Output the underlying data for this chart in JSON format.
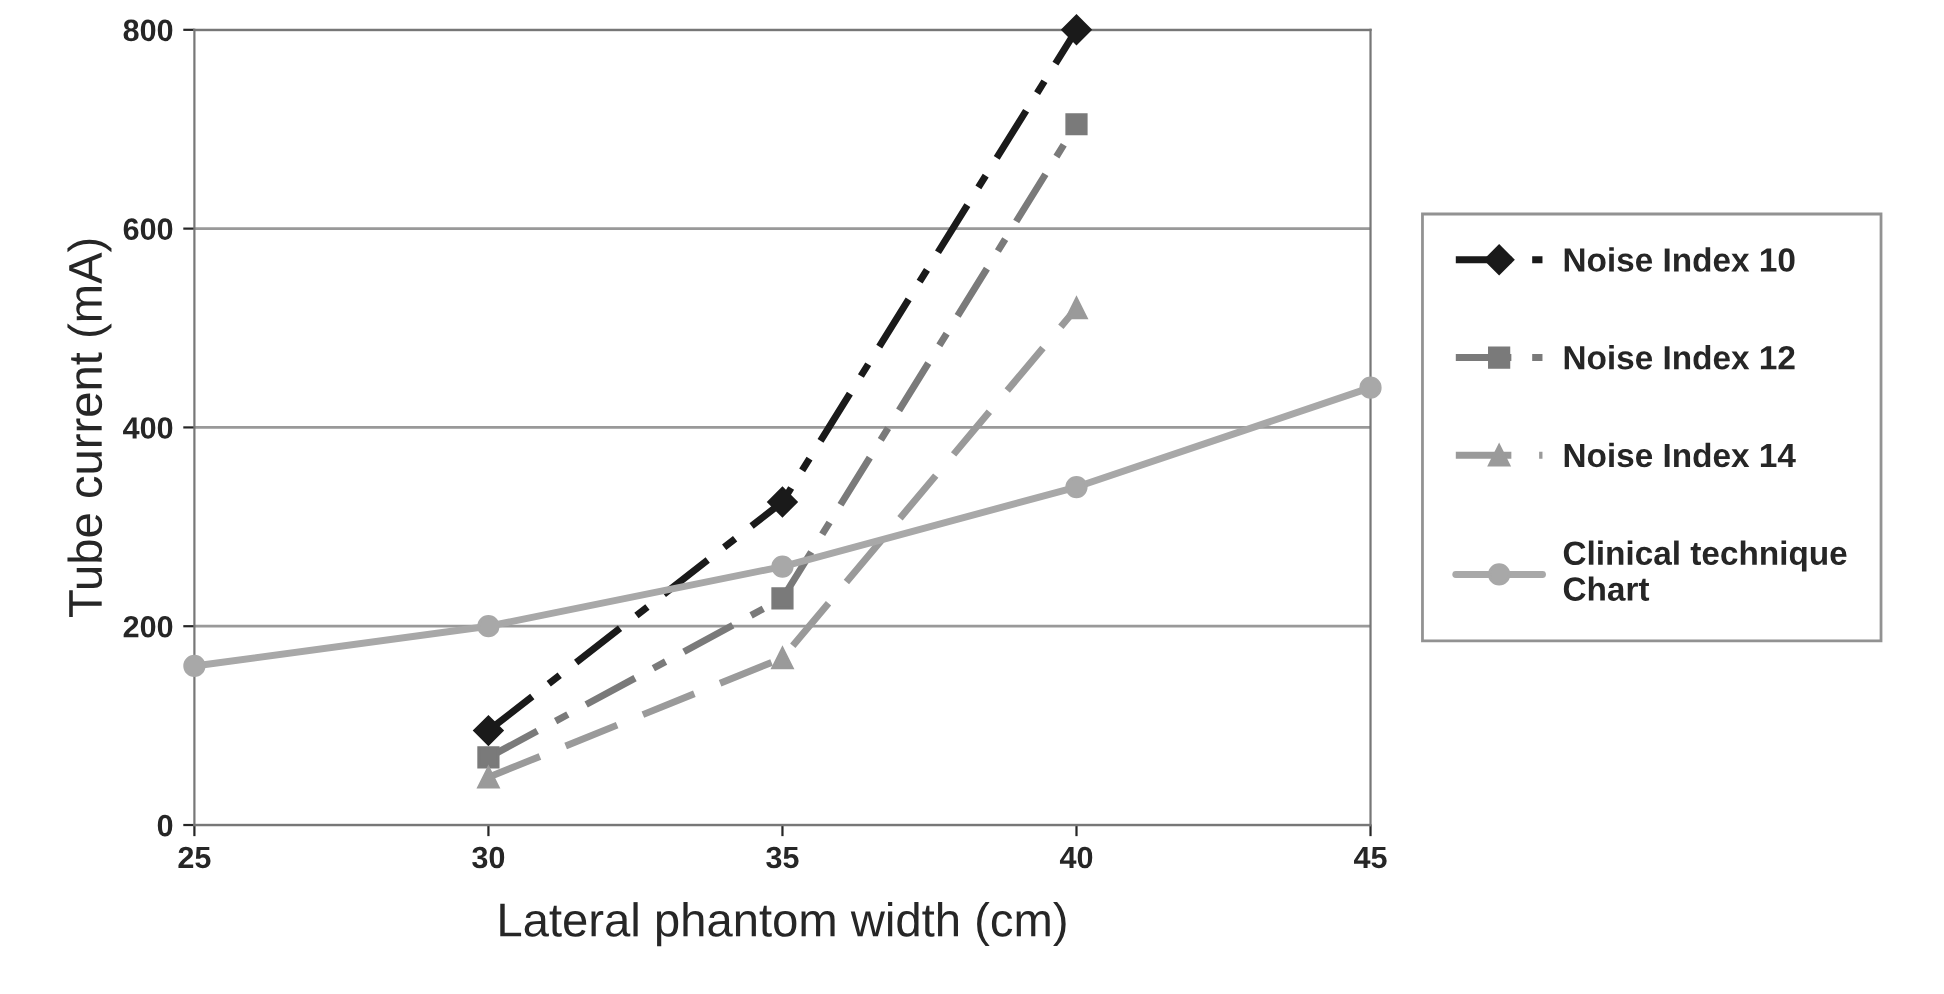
{
  "chart_data": {
    "type": "line",
    "xlabel": "Lateral phantom width (cm)",
    "ylabel": "Tube current (mA)",
    "xlim": [
      25,
      45
    ],
    "xticks": [
      25,
      30,
      35,
      40,
      45
    ],
    "ylim": [
      0,
      800
    ],
    "yticks": [
      0,
      200,
      400,
      600,
      800
    ],
    "grid": "y",
    "legend": "right",
    "series": [
      {
        "name": "Noise Index 10",
        "color": "#1a1a1a",
        "marker": "diamond",
        "line_style": "dashdot",
        "x": [
          30,
          35,
          40
        ],
        "values": [
          95,
          325,
          800
        ]
      },
      {
        "name": "Noise Index 12",
        "color": "#7a7a7a",
        "marker": "square",
        "line_style": "dashdot",
        "x": [
          30,
          35,
          40
        ],
        "values": [
          68,
          228,
          705
        ]
      },
      {
        "name": "Noise Index 14",
        "color": "#9a9a9a",
        "marker": "triangle",
        "line_style": "dashed",
        "x": [
          30,
          35,
          40
        ],
        "values": [
          48,
          168,
          520
        ]
      },
      {
        "name": "Clinical technique Chart",
        "color": "#a8a8a8",
        "marker": "circle",
        "line_style": "solid",
        "x": [
          25,
          30,
          35,
          40,
          45
        ],
        "values": [
          160,
          200,
          260,
          340,
          440
        ]
      }
    ]
  }
}
